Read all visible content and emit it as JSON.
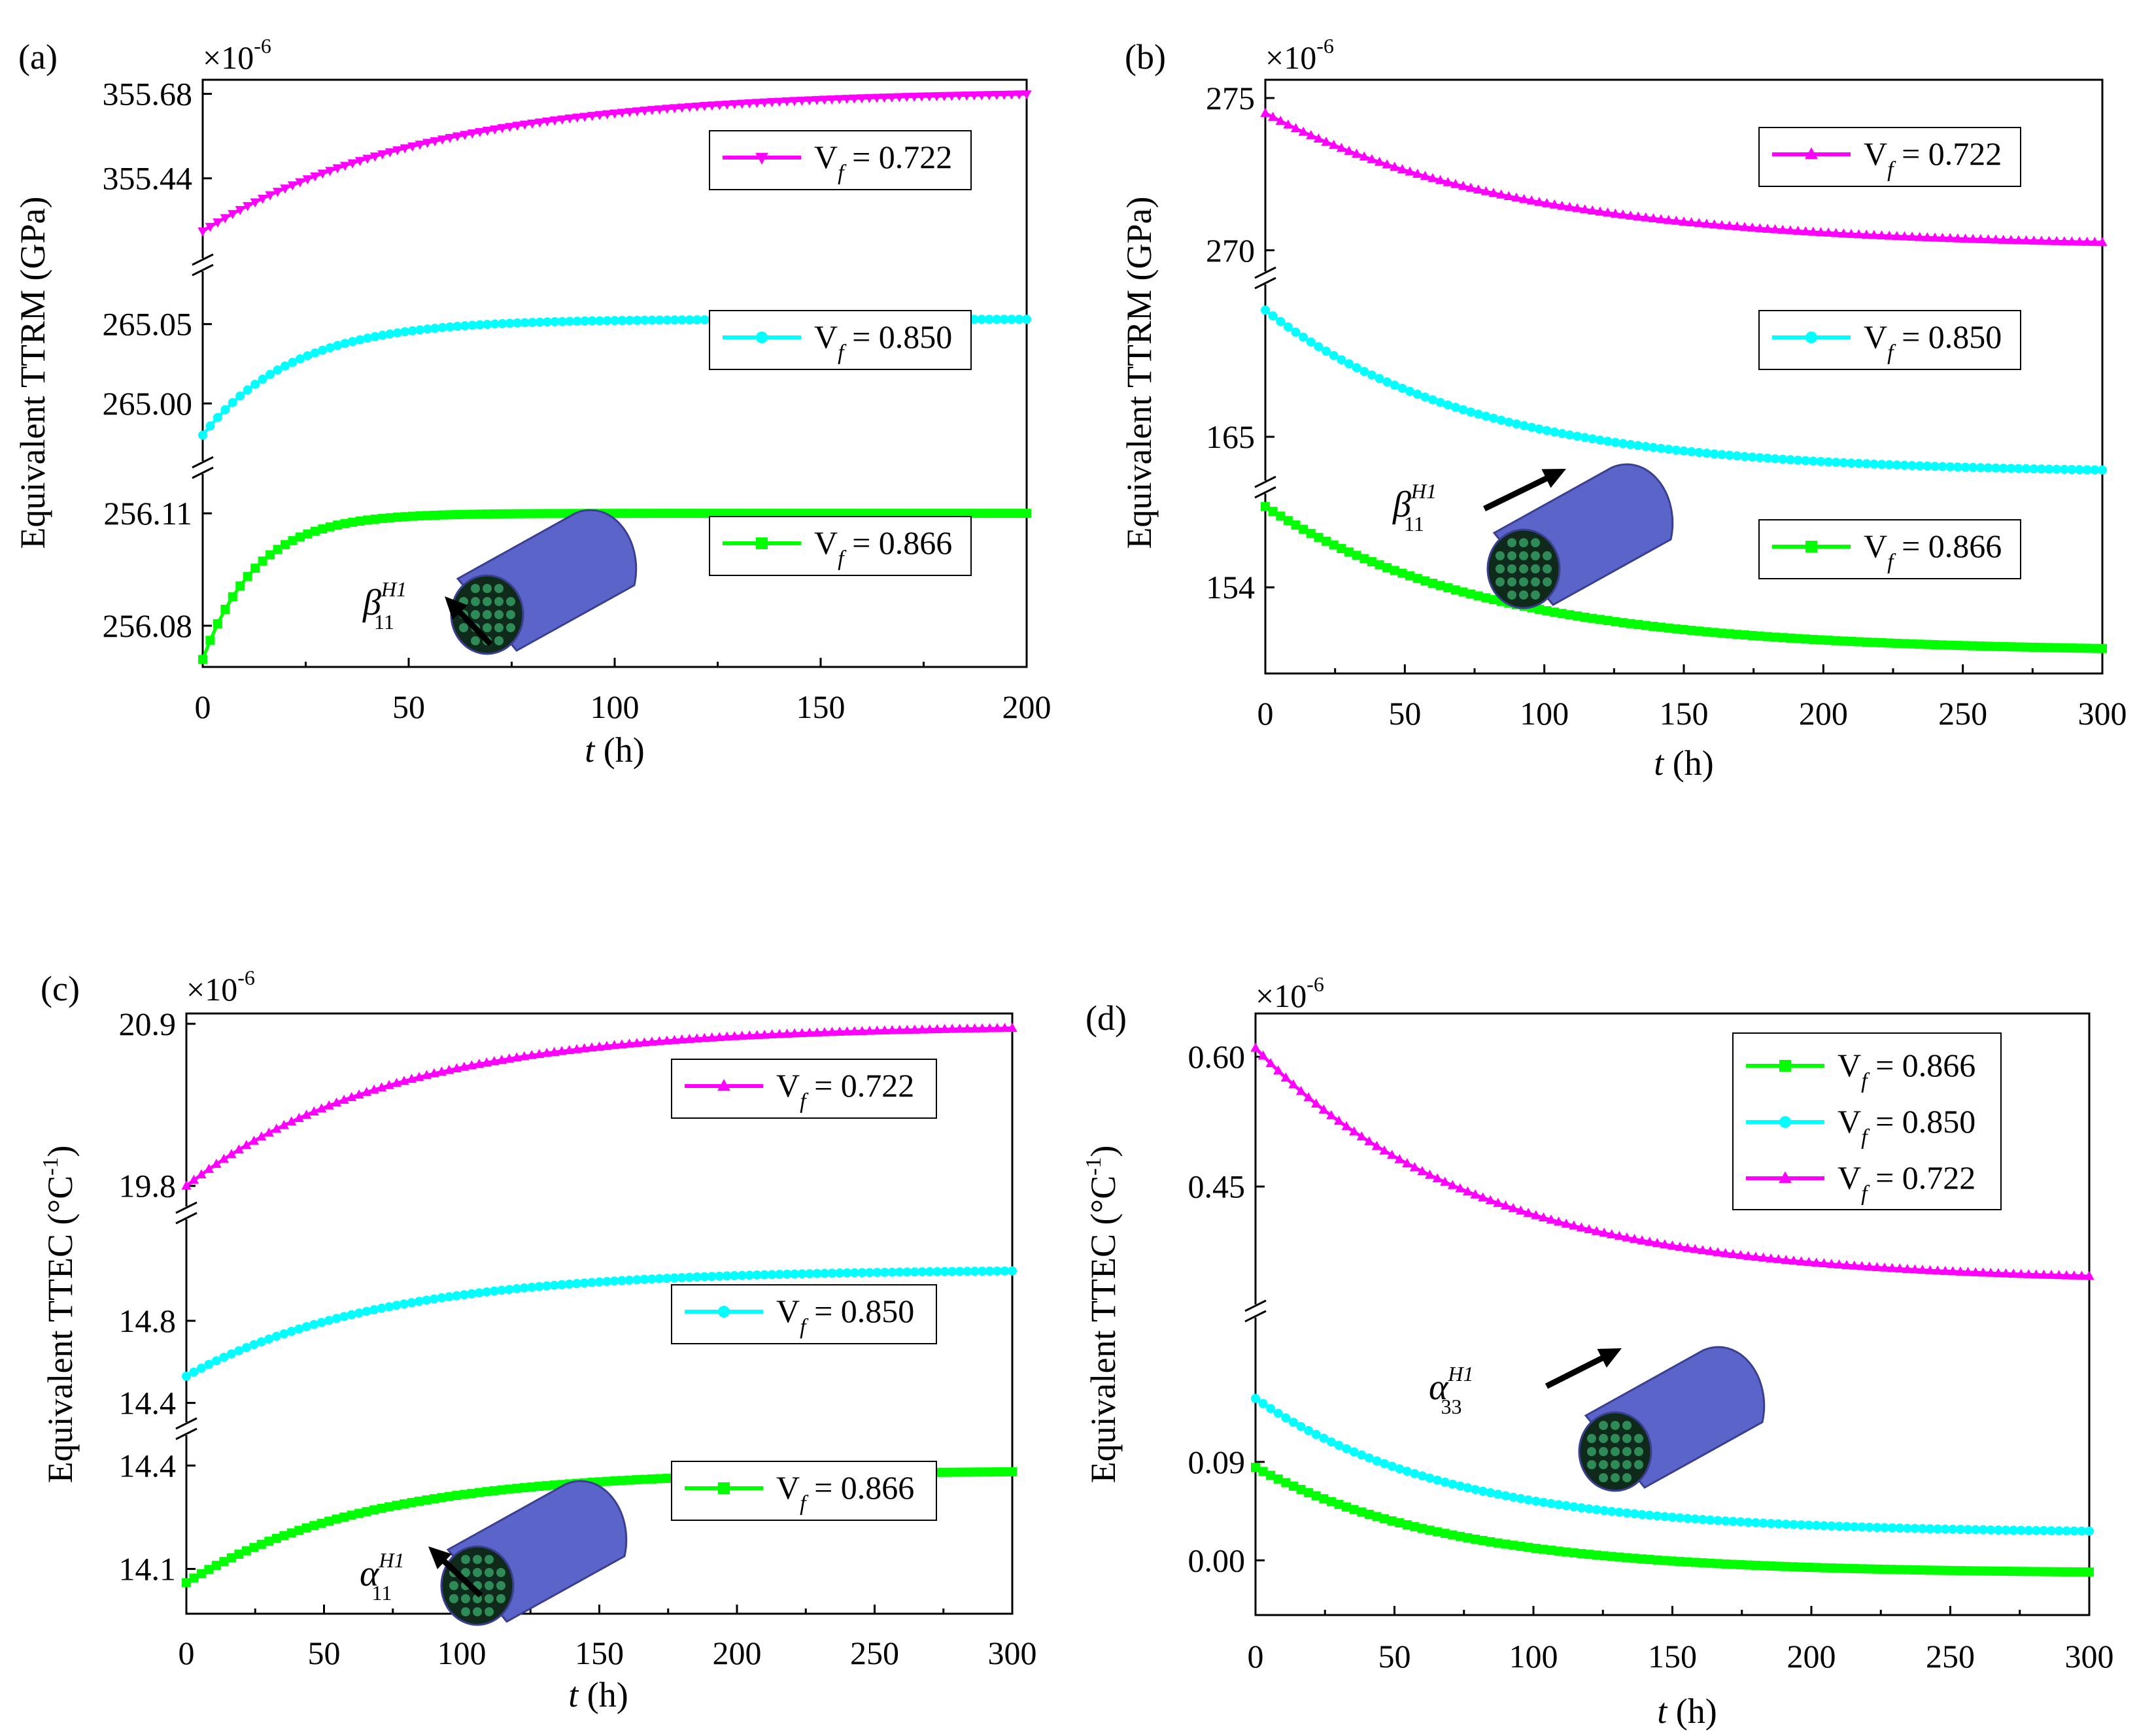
{
  "chart_data": [
    {
      "panel": "(a)",
      "type": "line",
      "multiplier": "×10",
      "multiplier_exp": "-6",
      "ylabel": "Equivalent TTRM  (GPa)",
      "xlabel_var": "t",
      "xlabel_unit": " (h)",
      "xlim": [
        0,
        200
      ],
      "xticks": [
        "0",
        "50",
        "100",
        "150",
        "200"
      ],
      "legend_position": "right",
      "inset": {
        "symbol": "β",
        "sup": "H1",
        "sub": "11",
        "arrow": "up-left"
      },
      "segments": [
        {
          "label": "V",
          "label_sub": "f",
          "label_value": " = 0.722",
          "marker": "triangle-down",
          "color": "#ff00ff",
          "ylim": [
            355.25,
            355.72
          ],
          "yticks": [
            "355.68",
            "355.44"
          ],
          "ytick_values": [
            355.68,
            355.44
          ],
          "curve": {
            "start": 355.29,
            "end": 355.69,
            "tau": 55
          }
        },
        {
          "label": "V",
          "label_sub": "f",
          "label_value": " = 0.850",
          "marker": "circle",
          "color": "#00ffff",
          "ylim": [
            264.972,
            265.075
          ],
          "yticks": [
            "265.05",
            "265.00"
          ],
          "ytick_values": [
            265.05,
            265.0
          ],
          "curve": {
            "start": 264.98,
            "end": 265.053,
            "tau": 22
          }
        },
        {
          "label": "V",
          "label_sub": "f",
          "label_value": " = 0.866",
          "marker": "square",
          "color": "#00ff00",
          "ylim": [
            256.069,
            256.117
          ],
          "yticks": [
            "256.11",
            "256.08"
          ],
          "ytick_values": [
            256.11,
            256.08
          ],
          "curve": {
            "start": 256.071,
            "end": 256.11,
            "tau": 13
          }
        }
      ]
    },
    {
      "panel": "(b)",
      "type": "line",
      "multiplier": "×10",
      "multiplier_exp": "-6",
      "ylabel": "Equivalent TTRM  (GPa)",
      "xlabel_var": "t",
      "xlabel_unit": " (h)",
      "xlim": [
        0,
        300
      ],
      "xticks": [
        "0",
        "50",
        "100",
        "150",
        "200",
        "250",
        "300"
      ],
      "legend_position": "right",
      "inset": {
        "symbol": "β",
        "sup": "H1",
        "sub": "11",
        "arrow": "up-right"
      },
      "segments": [
        {
          "label": "V",
          "label_sub": "f",
          "label_value": " = 0.722",
          "marker": "triangle-up",
          "color": "#ff00ff",
          "ylim": [
            269.2,
            275.6
          ],
          "yticks": [
            "275",
            "270"
          ],
          "ytick_values": [
            275,
            270
          ],
          "curve": {
            "start": 274.5,
            "end": 270.1,
            "tau": 90
          }
        },
        {
          "label": "V",
          "label_sub": "f",
          "label_value": " = 0.850",
          "marker": "circle",
          "color": "#00ffff",
          "ylim": [
            163.7,
            169.3
          ],
          "yticks": [
            "165"
          ],
          "ytick_values": [
            165
          ],
          "curve": {
            "start": 168.5,
            "end": 164.0,
            "tau": 75
          }
        },
        {
          "label": "V",
          "label_sub": "f",
          "label_value": " = 0.866",
          "marker": "square",
          "color": "#00ff00",
          "ylim": [
            150.8,
            157.6
          ],
          "yticks": [
            "154"
          ],
          "ytick_values": [
            154
          ],
          "curve": {
            "start": 157.0,
            "end": 151.6,
            "tau": 80
          }
        }
      ]
    },
    {
      "panel": "(c)",
      "type": "line",
      "multiplier": "×10",
      "multiplier_exp": "-6",
      "ylabel": "Equivalent TTEC (°C",
      "ylabel_sup": "-1",
      "ylabel_end": ")",
      "xlabel_var": "t",
      "xlabel_unit": " (h)",
      "xlim": [
        0,
        300
      ],
      "xticks": [
        "0",
        "50",
        "100",
        "150",
        "200",
        "250",
        "300"
      ],
      "legend_position": "right",
      "inset": {
        "symbol": "α",
        "sup": "H1",
        "sub": "11",
        "arrow": "up-left"
      },
      "segments": [
        {
          "label": "V",
          "label_sub": "f",
          "label_value": " = 0.722",
          "marker": "triangle-up",
          "color": "#ff00ff",
          "ylim": [
            19.75,
            20.97
          ],
          "yticks": [
            "20.9",
            "19.8"
          ],
          "ytick_values": [
            20.9,
            19.8
          ],
          "curve": {
            "start": 19.8,
            "end": 20.89,
            "tau": 75
          }
        },
        {
          "label": "V",
          "label_sub": "f",
          "label_value": " = 0.850",
          "marker": "circle",
          "color": "#00ffff",
          "ylim": [
            14.37,
            15.23
          ],
          "yticks": [
            "14.8",
            "14.4"
          ],
          "ytick_values": [
            14.8,
            14.4
          ],
          "curve": {
            "start": 14.53,
            "end": 15.05,
            "tau": 70
          }
        },
        {
          "label": "V",
          "label_sub": "f",
          "label_value": " = 0.866",
          "marker": "square",
          "color": "#00ff00",
          "ylim": [
            13.97,
            14.45
          ],
          "yticks": [
            "14.4",
            "14.1"
          ],
          "ytick_values": [
            14.4,
            14.1
          ],
          "curve": {
            "start": 14.06,
            "end": 14.385,
            "tau": 65
          }
        }
      ]
    },
    {
      "panel": "(d)",
      "type": "line",
      "multiplier": "×10",
      "multiplier_exp": "-6",
      "ylabel": "Equivalent TTEC (°C",
      "ylabel_sup": "-1",
      "ylabel_end": ")",
      "xlabel_var": "t",
      "xlabel_unit": " (h)",
      "xlim": [
        0,
        300
      ],
      "xticks": [
        "0",
        "50",
        "100",
        "150",
        "200",
        "250",
        "300"
      ],
      "legend_position": "top-right",
      "inset": {
        "symbol": "α",
        "sup": "H1",
        "sub": "33",
        "arrow": "up-right"
      },
      "legend_order": [
        2,
        1,
        0
      ],
      "segments": [
        {
          "label": "V",
          "label_sub": "f",
          "label_value": " = 0.722",
          "marker": "triangle-up",
          "color": "#ff00ff",
          "ylim": [
            0.31,
            0.65
          ],
          "yticks": [
            "0.60",
            "0.45"
          ],
          "ytick_values": [
            0.6,
            0.45
          ],
          "curve": {
            "start": 0.61,
            "end": 0.34,
            "tau": 80
          }
        },
        {
          "label": "V",
          "label_sub": "f",
          "label_value": " = 0.850",
          "marker": "circle",
          "color": "#00ffff",
          "ylim": [
            -0.05,
            0.225
          ],
          "yticks": [
            "0.09",
            "0.00"
          ],
          "ytick_values": [
            0.09,
            0.0
          ],
          "curve": {
            "start": 0.148,
            "end": 0.025,
            "tau": 70
          }
        },
        {
          "label": "V",
          "label_sub": "f",
          "label_value": " = 0.866",
          "marker": "square",
          "color": "#00ff00",
          "ylim": [
            -0.05,
            0.225
          ],
          "yticks": [],
          "ytick_values": [],
          "curve": {
            "start": 0.085,
            "end": -0.012,
            "tau": 70
          }
        }
      ]
    }
  ]
}
